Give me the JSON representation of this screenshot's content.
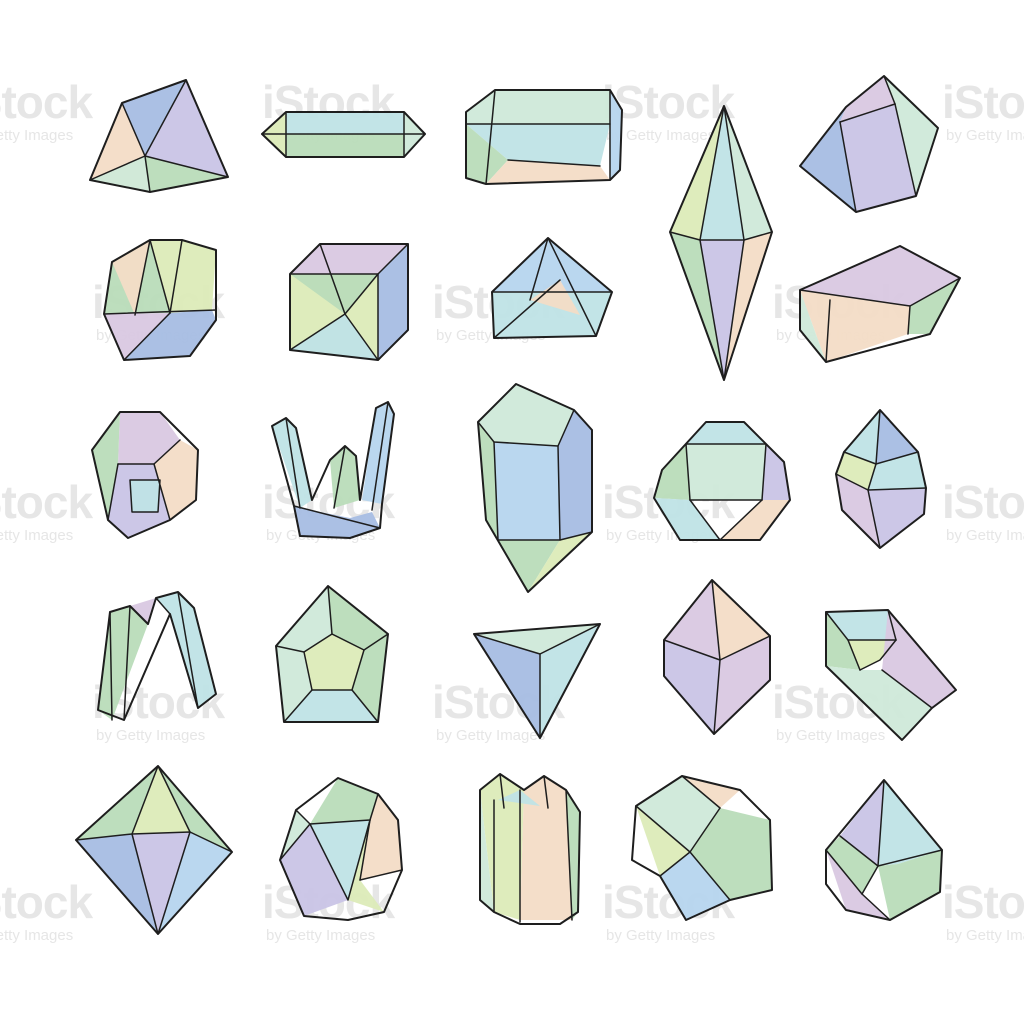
{
  "watermark": {
    "brand": "iStock",
    "credit": "by Getty Images"
  },
  "palette": {
    "mint": "#cfe9d9",
    "green": "#b9dcb9",
    "aqua": "#bfe3e6",
    "sky": "#b6d5ee",
    "blue": "#a7bde3",
    "lavender": "#c9c4e6",
    "lilac": "#d9c8e2",
    "peach": "#f3dcc6",
    "lime": "#dcebb8",
    "outline": "#1e1e1e"
  },
  "gems": [
    {
      "name": "gem-tetrahedron"
    },
    {
      "name": "gem-hex-prism-horizontal"
    },
    {
      "name": "gem-block"
    },
    {
      "name": "gem-long-shard"
    },
    {
      "name": "gem-cube-tilted"
    },
    {
      "name": "gem-faceted-octagon"
    },
    {
      "name": "gem-cube"
    },
    {
      "name": "gem-flat-wedge"
    },
    {
      "name": "gem-slab-tilted"
    },
    {
      "name": "gem-round-cluster"
    },
    {
      "name": "gem-crystal-cluster"
    },
    {
      "name": "gem-tall-prism"
    },
    {
      "name": "gem-dodecahedron"
    },
    {
      "name": "gem-small-faceted"
    },
    {
      "name": "gem-arch-prisms"
    },
    {
      "name": "gem-pentagon-cut"
    },
    {
      "name": "gem-inverted-pyramid"
    },
    {
      "name": "gem-rhomb"
    },
    {
      "name": "gem-open-box"
    },
    {
      "name": "gem-octahedron"
    },
    {
      "name": "gem-round-faceted"
    },
    {
      "name": "gem-column-cluster"
    },
    {
      "name": "gem-broken-chunk"
    },
    {
      "name": "gem-drop-cut"
    }
  ]
}
